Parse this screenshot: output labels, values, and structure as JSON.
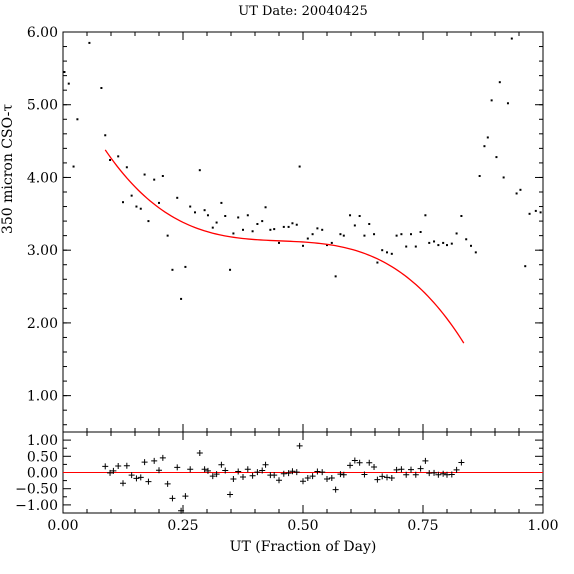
{
  "chart_data": [
    {
      "type": "scatter",
      "title": "UT Date: 20040425",
      "xlabel": "",
      "ylabel": "350 micron CSO-τ",
      "xlim": [
        0,
        1
      ],
      "ylim": [
        0.5,
        6.0
      ],
      "y_ticks": [
        1.0,
        2.0,
        3.0,
        4.0,
        5.0,
        6.0
      ],
      "y_tick_labels": [
        "1.00",
        "2.00",
        "3.00",
        "4.00",
        "5.00",
        "6.00"
      ],
      "x_ticks": [
        0,
        0.25,
        0.5,
        0.75,
        1.0
      ],
      "colors": {
        "points": "#000000",
        "fit": "#ff0000"
      },
      "series": [
        {
          "marker": "dot",
          "points": [
            [
              0.003,
              5.45
            ],
            [
              0.012,
              5.29
            ],
            [
              0.022,
              4.15
            ],
            [
              0.03,
              4.8
            ],
            [
              0.055,
              5.85
            ],
            [
              0.08,
              5.23
            ],
            [
              0.088,
              4.58
            ],
            [
              0.098,
              4.24
            ],
            [
              0.115,
              4.29
            ],
            [
              0.125,
              3.66
            ],
            [
              0.133,
              4.14
            ],
            [
              0.143,
              3.75
            ],
            [
              0.153,
              3.6
            ],
            [
              0.162,
              3.57
            ],
            [
              0.17,
              4.04
            ],
            [
              0.178,
              3.4
            ],
            [
              0.19,
              3.97
            ],
            [
              0.2,
              3.65
            ],
            [
              0.208,
              4.02
            ],
            [
              0.218,
              3.2
            ],
            [
              0.228,
              2.73
            ],
            [
              0.238,
              3.72
            ],
            [
              0.246,
              2.33
            ],
            [
              0.255,
              2.77
            ],
            [
              0.265,
              3.6
            ],
            [
              0.275,
              3.52
            ],
            [
              0.285,
              4.1
            ],
            [
              0.295,
              3.55
            ],
            [
              0.302,
              3.48
            ],
            [
              0.312,
              3.31
            ],
            [
              0.32,
              3.38
            ],
            [
              0.33,
              3.65
            ],
            [
              0.338,
              3.47
            ],
            [
              0.348,
              2.73
            ],
            [
              0.355,
              3.23
            ],
            [
              0.365,
              3.45
            ],
            [
              0.375,
              3.28
            ],
            [
              0.385,
              3.48
            ],
            [
              0.395,
              3.26
            ],
            [
              0.405,
              3.36
            ],
            [
              0.415,
              3.4
            ],
            [
              0.422,
              3.59
            ],
            [
              0.432,
              3.28
            ],
            [
              0.44,
              3.29
            ],
            [
              0.45,
              3.1
            ],
            [
              0.46,
              3.32
            ],
            [
              0.47,
              3.32
            ],
            [
              0.478,
              3.37
            ],
            [
              0.487,
              3.35
            ],
            [
              0.493,
              4.15
            ],
            [
              0.5,
              3.06
            ],
            [
              0.51,
              3.16
            ],
            [
              0.52,
              3.22
            ],
            [
              0.53,
              3.3
            ],
            [
              0.54,
              3.28
            ],
            [
              0.55,
              3.07
            ],
            [
              0.56,
              3.1
            ],
            [
              0.568,
              2.64
            ],
            [
              0.578,
              3.22
            ],
            [
              0.585,
              3.2
            ],
            [
              0.598,
              3.48
            ],
            [
              0.608,
              3.34
            ],
            [
              0.618,
              3.47
            ],
            [
              0.628,
              3.2
            ],
            [
              0.638,
              3.36
            ],
            [
              0.648,
              3.22
            ],
            [
              0.655,
              2.83
            ],
            [
              0.665,
              3.0
            ],
            [
              0.675,
              2.97
            ],
            [
              0.685,
              2.95
            ],
            [
              0.695,
              3.2
            ],
            [
              0.705,
              3.22
            ],
            [
              0.715,
              3.05
            ],
            [
              0.725,
              3.22
            ],
            [
              0.735,
              3.05
            ],
            [
              0.745,
              3.25
            ],
            [
              0.755,
              3.48
            ],
            [
              0.763,
              3.1
            ],
            [
              0.773,
              3.12
            ],
            [
              0.782,
              3.07
            ],
            [
              0.792,
              3.1
            ],
            [
              0.8,
              3.07
            ],
            [
              0.81,
              3.09
            ],
            [
              0.82,
              3.23
            ],
            [
              0.83,
              3.47
            ],
            [
              0.84,
              3.15
            ],
            [
              0.85,
              3.06
            ],
            [
              0.86,
              2.97
            ],
            [
              0.868,
              4.02
            ],
            [
              0.878,
              4.43
            ],
            [
              0.885,
              4.55
            ],
            [
              0.893,
              5.06
            ],
            [
              0.903,
              4.28
            ],
            [
              0.91,
              5.31
            ],
            [
              0.918,
              4.0
            ],
            [
              0.927,
              5.02
            ],
            [
              0.935,
              5.91
            ],
            [
              0.945,
              3.78
            ],
            [
              0.953,
              3.83
            ],
            [
              0.963,
              2.78
            ],
            [
              0.972,
              3.5
            ],
            [
              0.985,
              3.54
            ],
            [
              0.995,
              3.52
            ]
          ]
        },
        {
          "marker": "line",
          "x_range": [
            0.088,
            0.835
          ],
          "polynomial_coeffs": [
            5.45,
            -14.8,
            32.0,
            -23.5
          ]
        }
      ]
    },
    {
      "type": "scatter",
      "title": "",
      "xlabel": "UT (Fraction of Day)",
      "ylabel": "",
      "xlim": [
        0,
        1
      ],
      "ylim": [
        -1.25,
        1.25
      ],
      "y_ticks": [
        -1.0,
        -0.5,
        0.0,
        0.5,
        1.0
      ],
      "y_tick_labels": [
        "−1.00",
        "−0.50",
        "0.00",
        "0.50",
        "1.00"
      ],
      "x_ticks": [
        0,
        0.25,
        0.5,
        0.75,
        1.0
      ],
      "x_tick_labels": [
        "0.00",
        "0.25",
        "0.50",
        "0.75",
        "1.00"
      ],
      "zero_line": 0,
      "colors": {
        "points": "#000000",
        "zero_line": "#ff0000"
      },
      "series": [
        {
          "marker": "plus",
          "points": [
            [
              0.088,
              0.19
            ],
            [
              0.098,
              -0.01
            ],
            [
              0.105,
              0.05
            ],
            [
              0.115,
              0.2
            ],
            [
              0.125,
              -0.33
            ],
            [
              0.133,
              0.21
            ],
            [
              0.143,
              -0.08
            ],
            [
              0.153,
              -0.18
            ],
            [
              0.162,
              -0.15
            ],
            [
              0.17,
              0.32
            ],
            [
              0.178,
              -0.28
            ],
            [
              0.19,
              0.36
            ],
            [
              0.2,
              0.07
            ],
            [
              0.208,
              0.45
            ],
            [
              0.218,
              -0.35
            ],
            [
              0.228,
              -0.8
            ],
            [
              0.238,
              0.16
            ],
            [
              0.246,
              -1.18
            ],
            [
              0.255,
              -0.73
            ],
            [
              0.265,
              0.1
            ],
            [
              0.285,
              0.6
            ],
            [
              0.295,
              0.1
            ],
            [
              0.302,
              0.05
            ],
            [
              0.312,
              -0.11
            ],
            [
              0.32,
              -0.05
            ],
            [
              0.33,
              0.24
            ],
            [
              0.338,
              0.06
            ],
            [
              0.348,
              -0.68
            ],
            [
              0.355,
              -0.2
            ],
            [
              0.365,
              0.03
            ],
            [
              0.375,
              -0.14
            ],
            [
              0.385,
              0.1
            ],
            [
              0.395,
              -0.1
            ],
            [
              0.405,
              0.01
            ],
            [
              0.415,
              0.06
            ],
            [
              0.422,
              0.24
            ],
            [
              0.432,
              -0.08
            ],
            [
              0.44,
              -0.08
            ],
            [
              0.45,
              -0.24
            ],
            [
              0.46,
              -0.04
            ],
            [
              0.47,
              -0.02
            ],
            [
              0.478,
              0.04
            ],
            [
              0.487,
              0.01
            ],
            [
              0.493,
              0.82
            ],
            [
              0.5,
              -0.27
            ],
            [
              0.51,
              -0.17
            ],
            [
              0.52,
              -0.11
            ],
            [
              0.53,
              0.03
            ],
            [
              0.54,
              0.01
            ],
            [
              0.55,
              -0.2
            ],
            [
              0.56,
              -0.17
            ],
            [
              0.568,
              -0.53
            ],
            [
              0.578,
              -0.05
            ],
            [
              0.585,
              -0.07
            ],
            [
              0.598,
              0.22
            ],
            [
              0.608,
              0.37
            ],
            [
              0.618,
              0.3
            ],
            [
              0.628,
              -0.06
            ],
            [
              0.638,
              0.3
            ],
            [
              0.648,
              0.17
            ],
            [
              0.655,
              -0.22
            ],
            [
              0.665,
              -0.12
            ],
            [
              0.675,
              -0.15
            ],
            [
              0.685,
              -0.17
            ],
            [
              0.695,
              0.08
            ],
            [
              0.705,
              0.1
            ],
            [
              0.715,
              -0.07
            ],
            [
              0.725,
              0.09
            ],
            [
              0.735,
              -0.07
            ],
            [
              0.745,
              0.12
            ],
            [
              0.755,
              0.36
            ],
            [
              0.763,
              -0.02
            ],
            [
              0.773,
              -0.01
            ],
            [
              0.782,
              -0.07
            ],
            [
              0.792,
              -0.04
            ],
            [
              0.8,
              -0.07
            ],
            [
              0.81,
              -0.06
            ],
            [
              0.82,
              0.08
            ],
            [
              0.83,
              0.31
            ]
          ]
        }
      ]
    }
  ]
}
